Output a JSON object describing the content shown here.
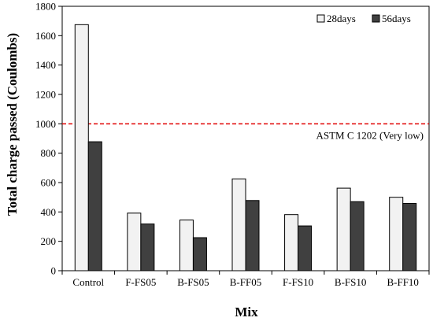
{
  "chart_data": {
    "type": "bar",
    "title": "",
    "xlabel": "Mix",
    "ylabel": "Total charge passed (Coulombs)",
    "categories": [
      "Control",
      "F-FS05",
      "B-FS05",
      "B-FF05",
      "F-FS10",
      "B-FS10",
      "B-FF10"
    ],
    "series": [
      {
        "name": "28days",
        "values": [
          1675,
          392,
          345,
          625,
          382,
          562,
          500
        ],
        "color": "#f2f2f2"
      },
      {
        "name": "56days",
        "values": [
          878,
          318,
          225,
          478,
          305,
          470,
          458
        ],
        "color": "#404040"
      }
    ],
    "ylim": [
      0,
      1800
    ],
    "yticks": [
      0,
      200,
      400,
      600,
      800,
      1000,
      1200,
      1400,
      1600,
      1800
    ],
    "grid": false,
    "legend_position": "top-right",
    "reference_line": {
      "value": 1000,
      "label": "ASTM C 1202 (Very low)",
      "color": "#e00000",
      "style": "dashed"
    },
    "bar_edge_color": "#000000"
  }
}
